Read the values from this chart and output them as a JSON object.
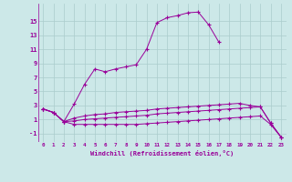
{
  "xlabel": "Windchill (Refroidissement éolien,°C)",
  "x": [
    0,
    1,
    2,
    3,
    4,
    5,
    6,
    7,
    8,
    9,
    10,
    11,
    12,
    13,
    14,
    15,
    16,
    17,
    18,
    19,
    20,
    21,
    22,
    23
  ],
  "line1": [
    2.5,
    2.0,
    0.7,
    3.2,
    6.0,
    8.2,
    7.8,
    8.2,
    8.5,
    8.8,
    11.0,
    14.8,
    15.5,
    15.8,
    16.2,
    16.3,
    14.5,
    12.0,
    null,
    null,
    null,
    null,
    null,
    null
  ],
  "line2": [
    2.5,
    2.0,
    0.7,
    1.2,
    1.5,
    1.7,
    1.8,
    2.0,
    2.1,
    2.2,
    2.3,
    2.5,
    2.6,
    2.7,
    2.8,
    2.9,
    3.0,
    3.1,
    3.2,
    3.3,
    3.0,
    2.8,
    0.5,
    -1.5
  ],
  "line3": [
    2.5,
    2.0,
    0.7,
    0.8,
    1.0,
    1.1,
    1.2,
    1.3,
    1.4,
    1.5,
    1.6,
    1.8,
    1.9,
    2.0,
    2.1,
    2.2,
    2.3,
    2.4,
    2.5,
    2.6,
    2.7,
    2.8,
    0.5,
    -1.5
  ],
  "line4": [
    2.5,
    2.0,
    0.7,
    0.3,
    0.3,
    0.3,
    0.3,
    0.3,
    0.3,
    0.3,
    0.4,
    0.5,
    0.6,
    0.7,
    0.8,
    0.9,
    1.0,
    1.1,
    1.2,
    1.3,
    1.4,
    1.5,
    0.3,
    -1.5
  ],
  "line_color": "#990099",
  "bg_color": "#cce8e8",
  "grid_color": "#aacccc",
  "yticks": [
    -1,
    1,
    3,
    5,
    7,
    9,
    11,
    13,
    15
  ],
  "ylim": [
    -2.2,
    17.5
  ],
  "xlim": [
    -0.5,
    23.5
  ],
  "xticks": [
    0,
    1,
    2,
    3,
    4,
    5,
    6,
    7,
    8,
    9,
    10,
    11,
    12,
    13,
    14,
    15,
    16,
    17,
    18,
    19,
    20,
    21,
    22,
    23
  ]
}
